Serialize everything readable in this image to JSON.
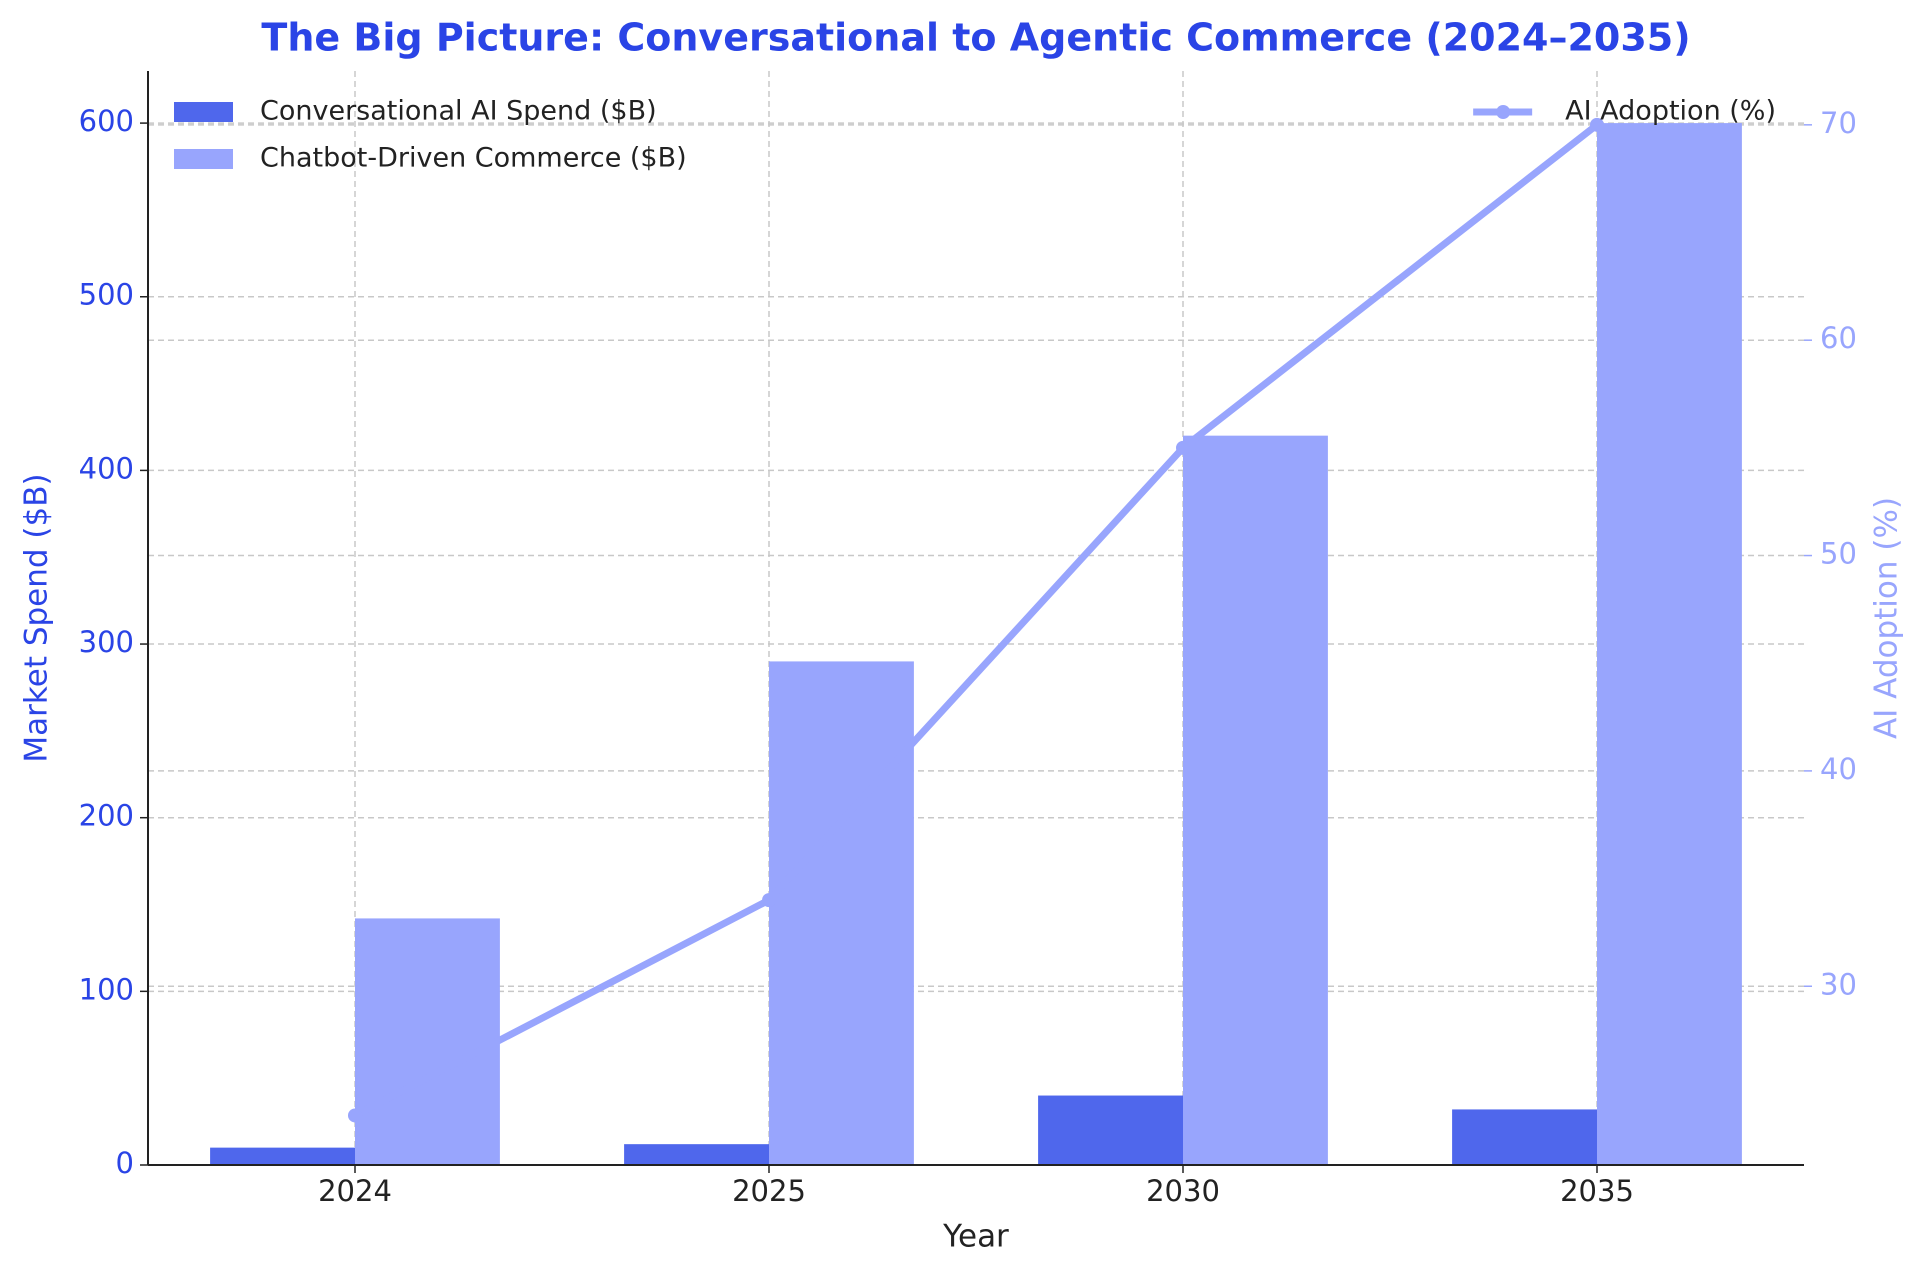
{
  "chart_data": {
    "type": "bar",
    "title": "The Big Picture: Conversational to Agentic Commerce (2024–2035)",
    "x_label": "Year",
    "y_label": "Market Spend ($B)",
    "y2_label": "AI Adoption (%)",
    "categories": [
      "2024",
      "2025",
      "2030",
      "2035"
    ],
    "series": [
      {
        "name": "Conversational AI Spend ($B)",
        "color": "#4f67ec",
        "type": "bar",
        "values": [
          10,
          12,
          40,
          32
        ]
      },
      {
        "name": "Chatbot-Driven Commerce ($B)",
        "color": "#98a5fd",
        "type": "bar",
        "values": [
          142,
          290,
          420,
          600
        ]
      },
      {
        "name": "AI Adoption (%)",
        "color": "#98a5fd",
        "type": "line",
        "axis": "y2",
        "values": [
          24,
          34,
          55,
          70
        ]
      }
    ],
    "ylim": [
      0,
      630
    ],
    "yticks": [
      0,
      100,
      200,
      300,
      400,
      500,
      600
    ],
    "y2lim": [
      21.7,
      72.5
    ],
    "y2ticks": [
      30,
      40,
      50,
      60,
      70
    ],
    "grid": true,
    "legend": "upper left",
    "legend2": "upper right",
    "title_color": "#2a44e6",
    "y_axis_color": "#2a44e6",
    "y2_axis_color": "#98a5fd"
  }
}
